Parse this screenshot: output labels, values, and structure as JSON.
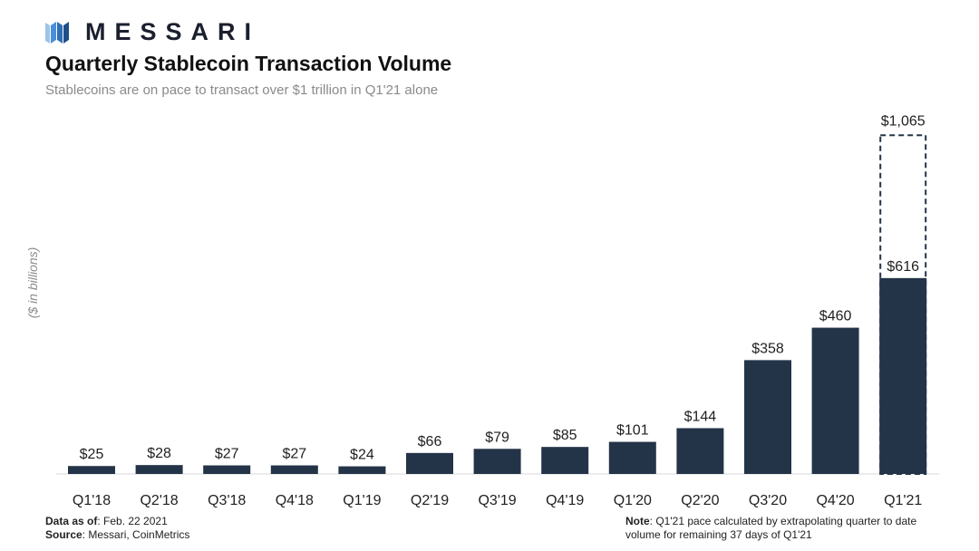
{
  "brand": {
    "name": "MESSARI",
    "logo_icon": "messari-logo-icon",
    "accent_color": "#4a90d9",
    "dark_color": "#1b1f2e"
  },
  "header": {
    "title": "Quarterly Stablecoin Transaction Volume",
    "subtitle": "Stablecoins are on pace to transact over $1 trillion in Q1'21 alone"
  },
  "chart_data": {
    "type": "bar",
    "title": "Quarterly Stablecoin Transaction Volume",
    "ylabel": "($ in billions)",
    "xlabel": "",
    "categories": [
      "Q1'18",
      "Q2'18",
      "Q3'18",
      "Q4'18",
      "Q1'19",
      "Q2'19",
      "Q3'19",
      "Q4'19",
      "Q1'20",
      "Q2'20",
      "Q3'20",
      "Q4'20",
      "Q1'21"
    ],
    "values": [
      25,
      28,
      27,
      27,
      24,
      66,
      79,
      85,
      101,
      144,
      358,
      460,
      616
    ],
    "value_labels": [
      "$25",
      "$28",
      "$27",
      "$27",
      "$24",
      "$66",
      "$79",
      "$85",
      "$101",
      "$144",
      "$358",
      "$460",
      "$616"
    ],
    "projection": {
      "category": "Q1'21",
      "value": 1065,
      "label": "$1,065",
      "style": "dashed-outline"
    },
    "ylim": [
      0,
      1100
    ],
    "bar_color": "#243448",
    "grid": false,
    "legend": "none"
  },
  "footer": {
    "data_as_of_label": "Data as of",
    "data_as_of_value": ": Feb. 22 2021",
    "source_label": "Source",
    "source_value": ": Messari, CoinMetrics",
    "note_label": "Note",
    "note_value": ": Q1'21 pace calculated by extrapolating quarter to date volume for remaining 37 days of Q1'21"
  }
}
